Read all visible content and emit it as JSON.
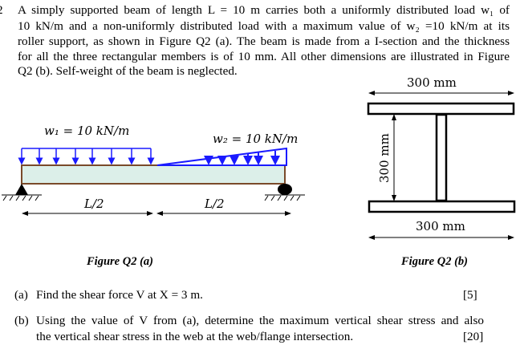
{
  "question": {
    "number": "2",
    "lines": [
      "A simply supported beam of length L = 10 m carries both a uniformly distributed load w₁ of",
      "10 kN/m and a non-uniformly distributed load with a maximum value of w₂ =10 kN/m at its",
      "roller support, as shown in Figure Q2 (a). The beam is made from a I-section and the thickness",
      "for all the three rectangular members is of 10 mm. All other dimensions are illustrated in Figure",
      "Q2 (b). Self-weight of the beam is neglected."
    ]
  },
  "figure_a": {
    "w1_label": "w₁ = 10 kN/m",
    "w2_label": "w₂ = 10 kN/m",
    "span_left": "L/2",
    "span_right": "L/2",
    "caption": "Figure Q2 (a)",
    "load_color": "#1a1aff",
    "beam_fill": "#dcefe9",
    "beam_edge": "#7a4a2a"
  },
  "figure_b": {
    "top_width": "300 mm",
    "depth": "300 mm",
    "bottom_width": "300 mm",
    "caption": "Figure Q2 (b)"
  },
  "parts": [
    {
      "label": "(a)",
      "lines": [
        "Find the shear force V at X = 3 m."
      ],
      "marks": "[5]"
    },
    {
      "label": "(b)",
      "lines": [
        "Using the value of V from (a), determine the maximum vertical shear stress and also",
        "the vertical shear stress in the web at the web/flange intersection."
      ],
      "marks": "[20]"
    }
  ]
}
